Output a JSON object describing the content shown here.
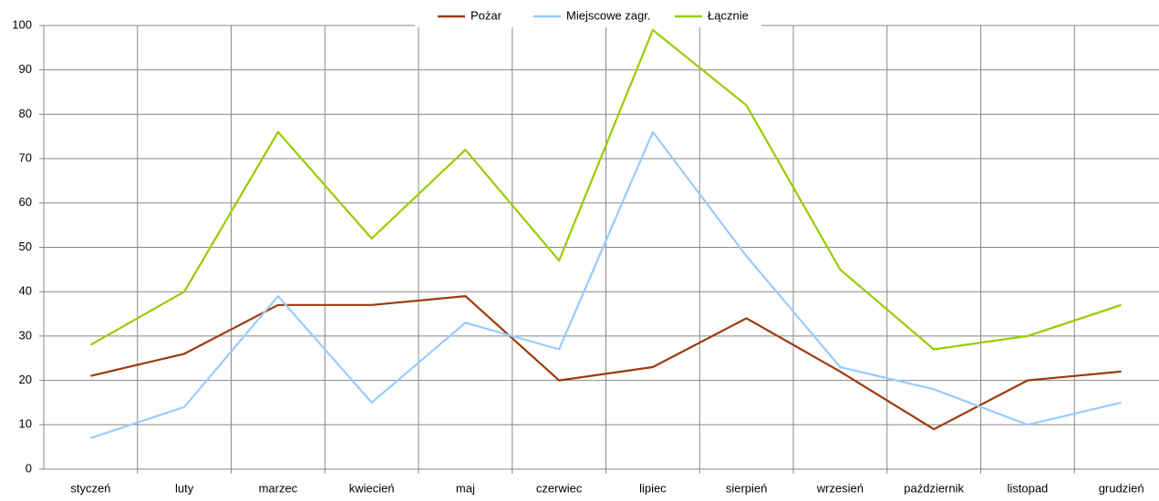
{
  "chart_data": {
    "type": "line",
    "categories": [
      "styczeń",
      "luty",
      "marzec",
      "kwiecień",
      "maj",
      "czerwiec",
      "lipiec",
      "sierpień",
      "wrzesień",
      "październik",
      "listopad",
      "grudzień"
    ],
    "series": [
      {
        "name": "Pożar",
        "color": "#9c3a0c",
        "values": [
          21,
          26,
          37,
          37,
          39,
          20,
          23,
          34,
          22,
          9,
          20,
          22
        ]
      },
      {
        "name": "Miejscowe zagr.",
        "color": "#99ccff",
        "values": [
          7,
          14,
          39,
          15,
          33,
          27,
          76,
          48,
          23,
          18,
          10,
          15
        ]
      },
      {
        "name": "Łącznie",
        "color": "#99cc00",
        "values": [
          28,
          40,
          76,
          52,
          72,
          47,
          99,
          82,
          45,
          27,
          30,
          37
        ]
      }
    ],
    "ylim": [
      0,
      100
    ],
    "yticks": [
      0,
      10,
      20,
      30,
      40,
      50,
      60,
      70,
      80,
      90,
      100
    ],
    "grid": true,
    "legend": "top"
  }
}
